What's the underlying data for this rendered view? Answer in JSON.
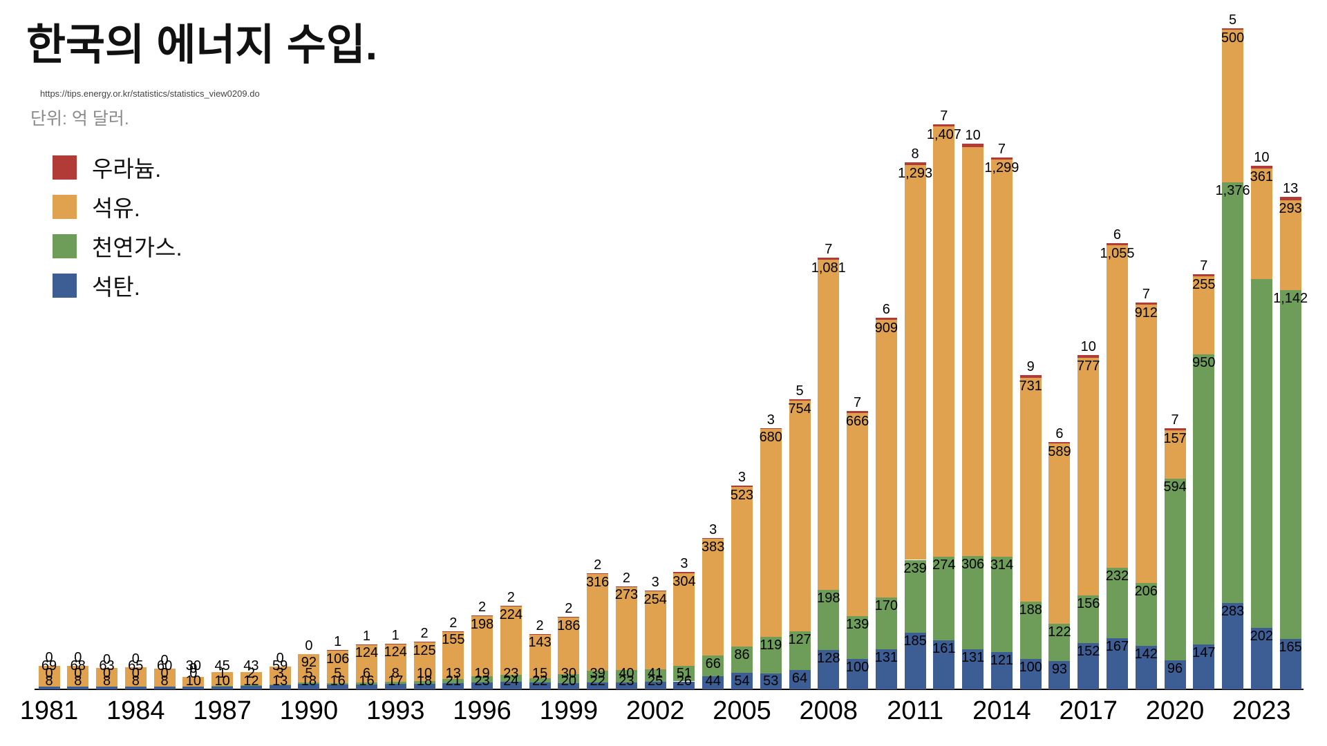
{
  "header": {
    "title": "한국의 에너지 수입.",
    "source_url": "https://tips.energy.or.kr/statistics/statistics_view0209.do",
    "unit_label": "단위: 억 달러."
  },
  "colors": {
    "uranium": "#b23b37",
    "oil": "#e0a24e",
    "gas": "#6d9d58",
    "coal": "#3c5e94",
    "axis": "#000000"
  },
  "legend": [
    {
      "label": "우라늄.",
      "color": "#b23b37"
    },
    {
      "label": "석유.",
      "color": "#e0a24e"
    },
    {
      "label": "천연가스.",
      "color": "#6d9d58"
    },
    {
      "label": "석탄.",
      "color": "#3c5e94"
    }
  ],
  "chart_data": {
    "type": "bar",
    "stacked": true,
    "title": "한국의 에너지 수입.",
    "unit": "억 달러",
    "grid": false,
    "legend_position": "upper-left",
    "ylim": [
      0,
      2200
    ],
    "x": [
      1981,
      1982,
      1983,
      1984,
      1985,
      1986,
      1987,
      1988,
      1989,
      1990,
      1991,
      1992,
      1993,
      1994,
      1995,
      1996,
      1997,
      1998,
      1999,
      2000,
      2001,
      2002,
      2003,
      2004,
      2005,
      2006,
      2007,
      2008,
      2009,
      2010,
      2011,
      2012,
      2013,
      2014,
      2015,
      2016,
      2017,
      2018,
      2019,
      2020,
      2021,
      2022,
      2023,
      2024
    ],
    "x_tick_labels": [
      "1981",
      "1984",
      "1987",
      "1990",
      "1993",
      "1996",
      "1999",
      "2002",
      "2005",
      "2008",
      "2011",
      "2014",
      "2017",
      "2020",
      "2023"
    ],
    "series": [
      {
        "name": "석탄.",
        "key": "coal",
        "color": "#3c5e94",
        "values": [
          8,
          8,
          8,
          8,
          8,
          10,
          10,
          12,
          13,
          18,
          16,
          16,
          17,
          18,
          21,
          23,
          24,
          22,
          20,
          22,
          23,
          25,
          26,
          44,
          54,
          53,
          64,
          128,
          100,
          131,
          185,
          161,
          131,
          121,
          100,
          93,
          152,
          167,
          142,
          96,
          147,
          283,
          202,
          165
        ],
        "labels": [
          "8",
          "8",
          "8",
          "8",
          "8",
          "10",
          "10",
          "12",
          "13",
          "18",
          "16",
          "16",
          "17",
          "18",
          "21",
          "23",
          "24",
          "22",
          "20",
          "22",
          "23",
          "25",
          "26",
          "44",
          "54",
          "53",
          "64",
          "128",
          "100",
          "131",
          "185",
          "161",
          "131",
          "121",
          "100",
          "93",
          "152",
          "167",
          "142",
          "96",
          "147",
          "283",
          "202",
          "165"
        ]
      },
      {
        "name": "천연가스.",
        "key": "gas",
        "color": "#6d9d58",
        "values": [
          0,
          0,
          0,
          0,
          0,
          0,
          1,
          2,
          3,
          5,
          5,
          6,
          8,
          10,
          13,
          19,
          23,
          15,
          30,
          39,
          40,
          41,
          51,
          66,
          86,
          119,
          127,
          198,
          139,
          170,
          239,
          274,
          306,
          314,
          188,
          122,
          156,
          232,
          206,
          594,
          950,
          1376,
          1141,
          1142
        ],
        "labels": [
          "0",
          "0",
          "0",
          "0",
          "0",
          "0",
          "1",
          "2",
          "3",
          "5",
          "5",
          "6",
          "8",
          "10",
          "13",
          "19",
          "23",
          "15",
          "30",
          "39",
          "40",
          "41",
          "51",
          "66",
          "86",
          "119",
          "127",
          "198",
          "139",
          "170",
          "239",
          "274",
          "306",
          "314",
          "188",
          "122",
          "156",
          "232",
          "206",
          "594",
          "950",
          "1,376",
          "",
          "1,142"
        ]
      },
      {
        "name": "석유.",
        "key": "oil",
        "color": "#e0a24e",
        "values": [
          69,
          68,
          63,
          65,
          60,
          30,
          45,
          43,
          59,
          92,
          106,
          124,
          124,
          125,
          155,
          198,
          224,
          143,
          186,
          316,
          273,
          254,
          304,
          383,
          523,
          680,
          754,
          1081,
          666,
          909,
          1293,
          1407,
          1339,
          1299,
          731,
          589,
          777,
          1055,
          912,
          157,
          255,
          500,
          361,
          293
        ],
        "labels": [
          "69",
          "68",
          "63",
          "65",
          "60",
          "30",
          "45",
          "43",
          "59",
          "92",
          "106",
          "124",
          "124",
          "125",
          "155",
          "198",
          "224",
          "143",
          "186",
          "316",
          "273",
          "254",
          "304",
          "383",
          "523",
          "680",
          "754",
          "1,081",
          "666",
          "909",
          "1,293",
          "1,407",
          "",
          "1,299",
          "731",
          "589",
          "777",
          "1,055",
          "912",
          "157",
          "255",
          "500",
          "361",
          "293"
        ]
      },
      {
        "name": "우라늄.",
        "key": "uranium",
        "color": "#b23b37",
        "values": [
          0,
          0,
          0,
          0,
          0,
          0,
          0,
          0,
          0,
          0,
          1,
          1,
          1,
          2,
          2,
          2,
          2,
          2,
          2,
          2,
          2,
          3,
          3,
          3,
          3,
          3,
          5,
          7,
          7,
          6,
          8,
          7,
          10,
          7,
          9,
          6,
          10,
          6,
          7,
          7,
          7,
          5,
          10,
          13
        ],
        "labels": [
          "0",
          "0",
          "0",
          "0",
          "0",
          "0",
          "",
          "",
          "0",
          "0",
          "1",
          "1",
          "1",
          "2",
          "2",
          "2",
          "2",
          "2",
          "2",
          "2",
          "2",
          "3",
          "3",
          "3",
          "3",
          "3",
          "5",
          "7",
          "7",
          "6",
          "8",
          "7",
          "10",
          "7",
          "9",
          "6",
          "10",
          "6",
          "7",
          "7",
          "7",
          "5",
          "10",
          "13"
        ]
      }
    ]
  }
}
